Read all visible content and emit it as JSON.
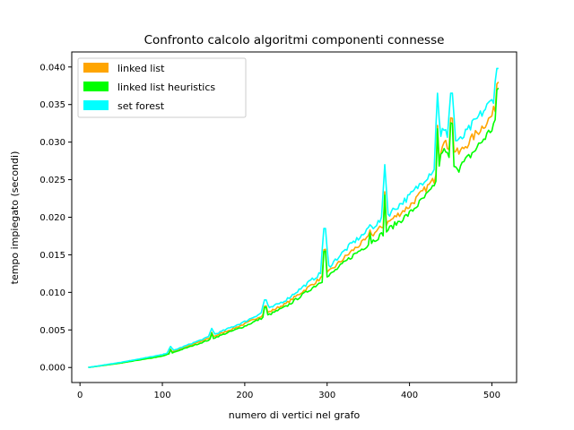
{
  "chart_data": {
    "type": "line",
    "title": "Confronto calcolo algoritmi componenti connesse",
    "xlabel": "numero di vertici nel grafo",
    "ylabel": "tempo impiegato (secondi)",
    "xlim": [
      -10,
      530
    ],
    "ylim": [
      -0.002,
      0.042
    ],
    "x_ticks": [
      0,
      100,
      200,
      300,
      400,
      500
    ],
    "x_tick_labels": [
      "0",
      "100",
      "200",
      "300",
      "400",
      "500"
    ],
    "y_ticks": [
      0.0,
      0.005,
      0.01,
      0.015,
      0.02,
      0.025,
      0.03,
      0.035,
      0.04
    ],
    "y_tick_labels": [
      "0.000",
      "0.005",
      "0.010",
      "0.015",
      "0.020",
      "0.025",
      "0.030",
      "0.035",
      "0.040"
    ],
    "grid": false,
    "legend_position": "top-left",
    "series": [
      {
        "name": "linked list",
        "color": "#ffa500",
        "x": [
          10,
          50,
          100,
          150,
          200,
          250,
          300,
          330,
          370,
          400,
          430,
          440,
          460,
          480,
          500,
          508
        ],
        "y": [
          0.0,
          0.0006,
          0.0016,
          0.0036,
          0.0058,
          0.0085,
          0.0125,
          0.0155,
          0.019,
          0.0215,
          0.025,
          0.03,
          0.0285,
          0.031,
          0.0335,
          0.0358
        ]
      },
      {
        "name": "linked list heuristics",
        "color": "#00ff00",
        "x": [
          10,
          50,
          100,
          150,
          200,
          250,
          300,
          330,
          370,
          400,
          430,
          440,
          460,
          480,
          500,
          508
        ],
        "y": [
          0.0,
          0.0006,
          0.0015,
          0.0034,
          0.0055,
          0.0081,
          0.012,
          0.0148,
          0.018,
          0.0205,
          0.024,
          0.029,
          0.0265,
          0.029,
          0.0318,
          0.034
        ]
      },
      {
        "name": "set forest",
        "color": "#00ffff",
        "x": [
          10,
          50,
          100,
          150,
          200,
          250,
          300,
          330,
          370,
          400,
          430,
          440,
          460,
          480,
          500,
          508
        ],
        "y": [
          0.0,
          0.0007,
          0.0017,
          0.0038,
          0.0061,
          0.009,
          0.0132,
          0.0165,
          0.02,
          0.0228,
          0.0265,
          0.0315,
          0.03,
          0.0328,
          0.0355,
          0.037
        ]
      }
    ],
    "spikes": [
      {
        "x": 110,
        "y": 0.0028
      },
      {
        "x": 160,
        "y": 0.0052
      },
      {
        "x": 225,
        "y": 0.009
      },
      {
        "x": 297,
        "y": 0.0185
      },
      {
        "x": 352,
        "y": 0.019
      },
      {
        "x": 370,
        "y": 0.027
      },
      {
        "x": 434,
        "y": 0.0365
      },
      {
        "x": 451,
        "y": 0.0365
      },
      {
        "x": 507,
        "y": 0.0398
      }
    ]
  }
}
